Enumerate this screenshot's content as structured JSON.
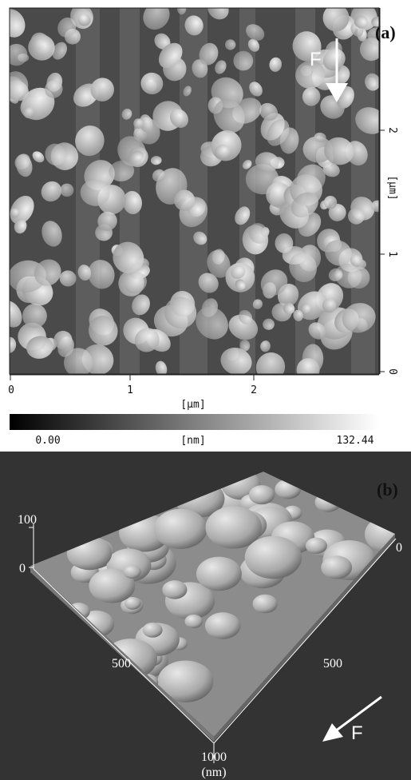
{
  "panel_a": {
    "label": "(a)",
    "arrow_label": "F",
    "right_axis": {
      "ticks": [
        "2",
        "1",
        "0"
      ],
      "unit": "[µm]"
    },
    "bottom_axis": {
      "ticks": [
        "0",
        "1",
        "2"
      ],
      "unit": "[µm]"
    },
    "colorbar": {
      "min": "0.00",
      "unit": "[nm]",
      "max": "132.44"
    }
  },
  "panel_b": {
    "label": "(b)",
    "arrow_label": "F",
    "z_axis": {
      "ticks": [
        "100",
        "0"
      ]
    },
    "right_axis": {
      "ticks": [
        "0",
        "500"
      ]
    },
    "left_axis": {
      "ticks": [
        "500",
        "1000"
      ],
      "unit": "(nm)"
    }
  }
}
